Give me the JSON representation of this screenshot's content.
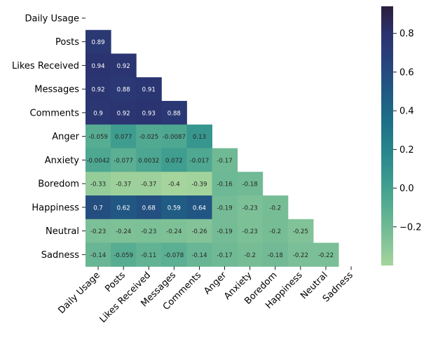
{
  "chart_data": {
    "type": "heatmap",
    "mask": "upper-triangle-including-diagonal",
    "labels": [
      "Daily Usage",
      "Posts",
      "Likes Received",
      "Messages",
      "Comments",
      "Anger",
      "Anxiety",
      "Boredom",
      "Happiness",
      "Neutral",
      "Sadness"
    ],
    "rows": [
      [],
      [
        "0.89"
      ],
      [
        "0.94",
        "0.92"
      ],
      [
        "0.92",
        "0.88",
        "0.91"
      ],
      [
        "0.9",
        "0.92",
        "0.93",
        "0.88"
      ],
      [
        "-0.059",
        "0.077",
        "-0.025",
        "-0.0087",
        "0.13"
      ],
      [
        "-0.0042",
        "-0.077",
        "0.0032",
        "0.072",
        "-0.017",
        "-0.17"
      ],
      [
        "-0.33",
        "-0.37",
        "-0.37",
        "-0.4",
        "-0.39",
        "-0.16",
        "-0.18"
      ],
      [
        "0.7",
        "0.62",
        "0.68",
        "0.59",
        "0.64",
        "-0.19",
        "-0.23",
        "-0.2"
      ],
      [
        "-0.23",
        "-0.24",
        "-0.23",
        "-0.24",
        "-0.26",
        "-0.19",
        "-0.23",
        "-0.2",
        "-0.25"
      ],
      [
        "-0.14",
        "-0.059",
        "-0.11",
        "-0.078",
        "-0.14",
        "-0.17",
        "-0.2",
        "-0.18",
        "-0.22",
        "-0.22"
      ]
    ],
    "colorbar": {
      "min": -0.4,
      "max": 0.94,
      "ticks": [
        0.8,
        0.6,
        0.4,
        0.2,
        0.0,
        -0.2
      ],
      "tick_labels": [
        "0.8",
        "0.6",
        "0.4",
        "0.2",
        "0.0",
        "−0.2"
      ],
      "colormap": "crest",
      "colors": [
        "#a5d49c",
        "#7dc097",
        "#58ae92",
        "#3a9a8f",
        "#27858c",
        "#1d6f88",
        "#205a84",
        "#27447d",
        "#2b3370",
        "#2c1e3e"
      ]
    },
    "title": "",
    "xlabel": "",
    "ylabel": ""
  }
}
